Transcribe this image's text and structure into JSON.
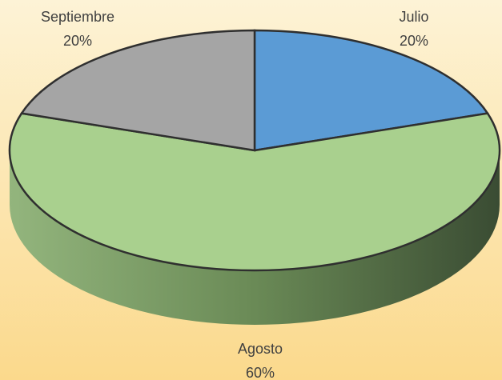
{
  "chart_data": {
    "type": "pie",
    "categories": [
      "Julio",
      "Agosto",
      "Septiembre"
    ],
    "values": [
      20,
      60,
      20
    ],
    "value_labels": [
      "20%",
      "60%",
      "20%"
    ],
    "colors": [
      "#5b9bd5",
      "#a9d08e",
      "#a5a5a5"
    ]
  }
}
